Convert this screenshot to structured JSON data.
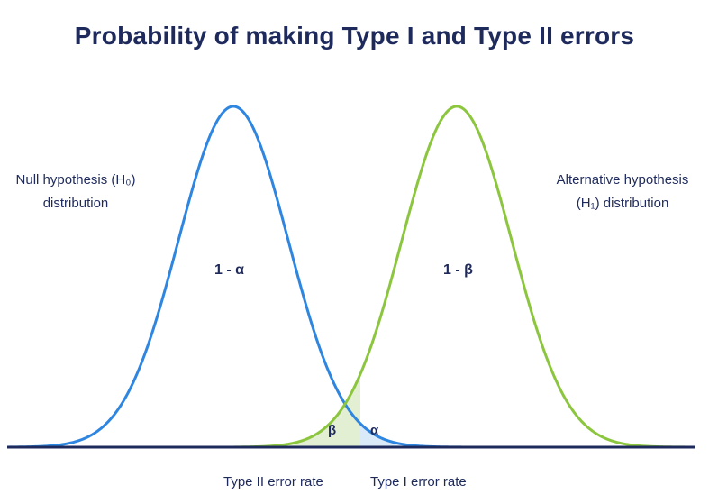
{
  "title": "Probability of making Type I and Type II errors",
  "null_label_line1": "Null hypothesis (H₀)",
  "null_label_line2": "distribution",
  "alt_label_line1": "Alternative hypothesis",
  "alt_label_line2": "(H₁) distribution",
  "null_region_label": "1 - α",
  "alt_region_label": "1 - β",
  "beta_label": "β",
  "alpha_label": "α",
  "type2_label": "Type II error rate",
  "type1_label": "Type I error rate",
  "colors": {
    "null_curve": "#2f86e0",
    "alt_curve": "#8cc63f",
    "beta_fill": "#e3efd2",
    "alpha_fill": "#dbeaf8",
    "axis": "#1e2a5c",
    "text": "#1e2a5c"
  }
}
